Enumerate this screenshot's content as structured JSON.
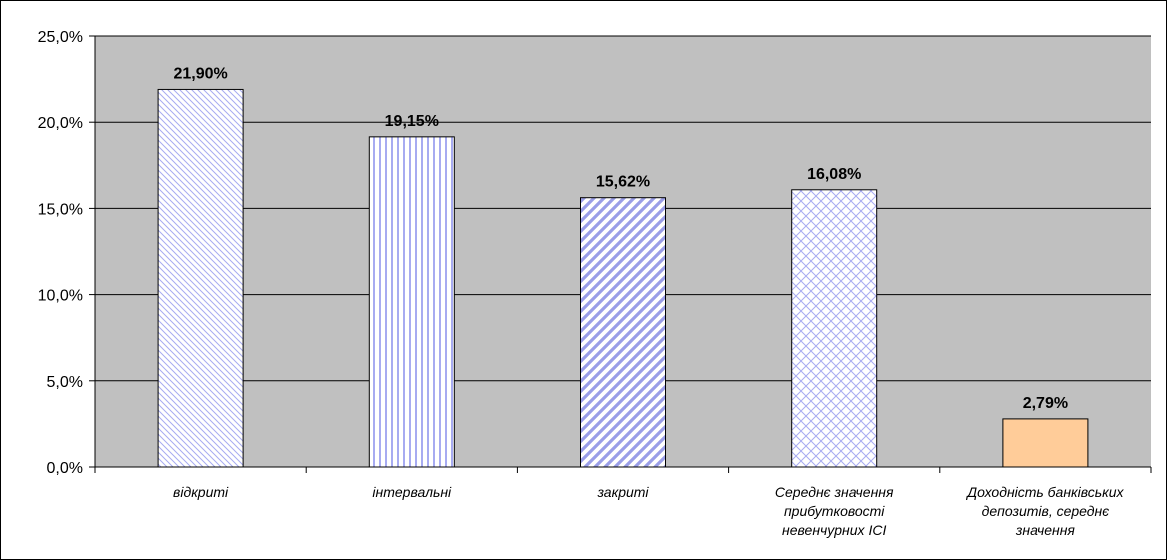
{
  "chart_data": {
    "type": "bar",
    "categories": [
      "відкриті",
      "інтервальні",
      "закриті",
      "Середнє значення прибутковості невенчурних ІСІ",
      "Доходність банківських депозитів, середнє значення"
    ],
    "category_label_lines": [
      [
        "відкриті"
      ],
      [
        "інтервальні"
      ],
      [
        "закриті"
      ],
      [
        "Середнє значення",
        "прибутковості",
        "невенчурних ІСІ"
      ],
      [
        "Доходність банківських",
        "депозитів, середнє",
        "значення"
      ]
    ],
    "values": [
      21.9,
      19.15,
      15.62,
      16.08,
      2.79
    ],
    "data_labels": [
      "21,90%",
      "19,15%",
      "15,62%",
      "16,08%",
      "2,79%"
    ],
    "ylim": [
      0,
      25
    ],
    "yticks": [
      0,
      5,
      10,
      15,
      20,
      25
    ],
    "ytick_labels": [
      "0,0%",
      "5,0%",
      "10,0%",
      "15,0%",
      "20,0%",
      "25,0%"
    ],
    "grid": true,
    "legend": "none",
    "bar_patterns": [
      "diagonal-down",
      "vertical",
      "diagonal-up-bold",
      "crosshatch",
      "solid"
    ],
    "colors": {
      "plot_background": "#c0c0c0",
      "pattern_stroke": "#a7abf1",
      "pattern_stroke_bold": "#9a9ee8",
      "solid_bar": "#ffcc99",
      "bar_outline": "#000000"
    }
  }
}
